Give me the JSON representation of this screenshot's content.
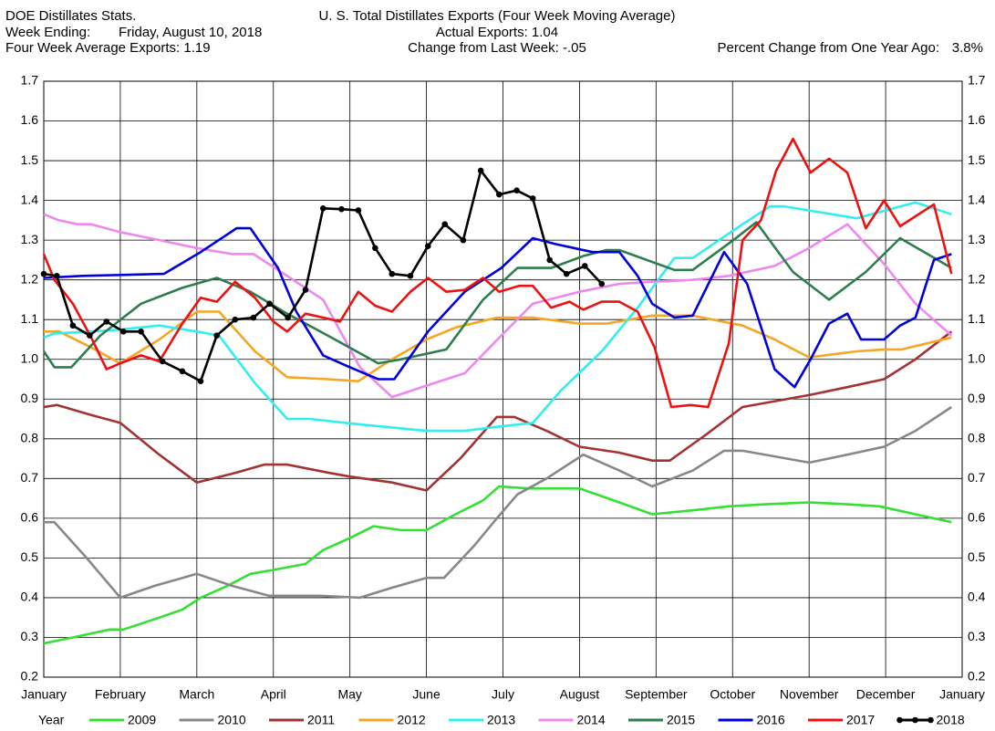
{
  "chart_data": {
    "type": "line",
    "header": {
      "source": "DOE Distillates Stats.",
      "week_label": "Week Ending:",
      "week_value": "Friday, August 10, 2018",
      "average": "Four Week Average Exports: 1.19",
      "actual": "Actual Exports: 1.04",
      "change": "Change from Last Week: -.05",
      "pct_label": "Percent Change from One Year Ago:",
      "pct_value": "3.8%"
    },
    "title": "U. S. Total Distillates Exports (Four Week Moving Average)",
    "legend_title": "Year",
    "xlim": [
      0,
      12
    ],
    "xticks": [
      {
        "value": 0,
        "label": "January"
      },
      {
        "value": 1,
        "label": "February"
      },
      {
        "value": 2,
        "label": "March"
      },
      {
        "value": 3,
        "label": "April"
      },
      {
        "value": 4,
        "label": "May"
      },
      {
        "value": 5,
        "label": "June"
      },
      {
        "value": 6,
        "label": "July"
      },
      {
        "value": 7,
        "label": "August"
      },
      {
        "value": 8,
        "label": "September"
      },
      {
        "value": 9,
        "label": "October"
      },
      {
        "value": 10,
        "label": "November"
      },
      {
        "value": 11,
        "label": "December"
      },
      {
        "value": 12,
        "label": "January"
      }
    ],
    "ylim": [
      0.2,
      1.7
    ],
    "yticks": [
      0.2,
      0.3,
      0.4,
      0.5,
      0.6,
      0.7,
      0.8,
      0.9,
      {
        "value": 1,
        "label": "1.0"
      },
      1.1,
      1.2,
      1.3,
      1.4,
      1.5,
      1.6,
      1.7
    ],
    "grid": true,
    "series": [
      {
        "name": "2009",
        "color": "#33e033",
        "x": [
          0,
          0.38,
          0.86,
          1.04,
          1.51,
          1.81,
          2.05,
          2.4,
          2.7,
          3,
          3.42,
          3.65,
          4,
          4.31,
          4.67,
          5,
          5.38,
          5.74,
          5.95,
          6.33,
          7,
          7.52,
          7.95,
          8.48,
          8.95,
          9.43,
          10,
          10.5,
          10.92,
          11.39,
          11.86
        ],
        "values": [
          0.285,
          0.3,
          0.32,
          0.32,
          0.35,
          0.37,
          0.4,
          0.43,
          0.46,
          0.47,
          0.485,
          0.52,
          0.55,
          0.58,
          0.57,
          0.57,
          0.61,
          0.645,
          0.68,
          0.675,
          0.675,
          0.64,
          0.61,
          0.62,
          0.63,
          0.635,
          0.64,
          0.635,
          0.63,
          0.61,
          0.59
        ]
      },
      {
        "name": "2010",
        "color": "#888888",
        "x": [
          0,
          0.14,
          0.56,
          1,
          1.45,
          2,
          2.46,
          2.94,
          3.6,
          4.13,
          4.55,
          5,
          5.23,
          5.62,
          5.92,
          6.19,
          6.57,
          7.05,
          7.52,
          7.95,
          8.48,
          8.89,
          9.13,
          10,
          10.5,
          10.98,
          11.39,
          11.86
        ],
        "values": [
          0.59,
          0.59,
          0.5,
          0.4,
          0.43,
          0.46,
          0.43,
          0.405,
          0.405,
          0.4,
          0.425,
          0.45,
          0.45,
          0.53,
          0.6,
          0.66,
          0.7,
          0.76,
          0.72,
          0.68,
          0.72,
          0.77,
          0.77,
          0.74,
          0.76,
          0.78,
          0.82,
          0.88
        ]
      },
      {
        "name": "2011",
        "color": "#a33333",
        "x": [
          0,
          0.17,
          0.62,
          1,
          1.51,
          2,
          2.52,
          2.88,
          3.18,
          3.71,
          4,
          4.55,
          5,
          5.44,
          5.92,
          6.15,
          6.57,
          7,
          7.52,
          7.95,
          8.18,
          8.65,
          9.13,
          10,
          10.5,
          10.98,
          11.39,
          11.86
        ],
        "values": [
          0.88,
          0.885,
          0.86,
          0.84,
          0.76,
          0.69,
          0.715,
          0.735,
          0.735,
          0.715,
          0.705,
          0.69,
          0.67,
          0.75,
          0.855,
          0.855,
          0.82,
          0.78,
          0.765,
          0.745,
          0.745,
          0.81,
          0.88,
          0.91,
          0.93,
          0.95,
          1.0,
          1.07
        ]
      },
      {
        "name": "2012",
        "color": "#f5a623",
        "x": [
          0,
          0.2,
          0.62,
          1,
          1.51,
          2,
          2.29,
          2.76,
          3.18,
          3.71,
          4.11,
          4.55,
          5,
          5.38,
          5.92,
          6.39,
          7,
          7.35,
          7.95,
          8.48,
          9.13,
          9.55,
          10,
          10.62,
          10.98,
          11.21,
          11.86
        ],
        "values": [
          1.07,
          1.07,
          1.03,
          0.99,
          1.05,
          1.12,
          1.12,
          1.02,
          0.955,
          0.95,
          0.945,
          1.0,
          1.05,
          1.08,
          1.105,
          1.105,
          1.09,
          1.09,
          1.11,
          1.11,
          1.085,
          1.05,
          1.005,
          1.02,
          1.025,
          1.025,
          1.055
        ]
      },
      {
        "name": "2013",
        "color": "#33eeee",
        "x": [
          0,
          0.14,
          0.62,
          1,
          1.51,
          2,
          2.29,
          2.76,
          3.18,
          3.48,
          4.19,
          5,
          5.5,
          5.92,
          6.39,
          6.75,
          7.29,
          7.76,
          8.24,
          8.48,
          9.13,
          9.49,
          9.67,
          10.62,
          11.1,
          11.39,
          11.86
        ],
        "values": [
          1.055,
          1.065,
          1.07,
          1.075,
          1.085,
          1.07,
          1.06,
          0.94,
          0.85,
          0.85,
          0.835,
          0.82,
          0.82,
          0.83,
          0.84,
          0.92,
          1.02,
          1.13,
          1.255,
          1.255,
          1.34,
          1.385,
          1.385,
          1.355,
          1.38,
          1.395,
          1.365
        ]
      },
      {
        "name": "2014",
        "color": "#ee88ee",
        "x": [
          0,
          0.2,
          0.44,
          0.62,
          1,
          1.51,
          2,
          2.46,
          2.74,
          3.18,
          3.65,
          4.13,
          4.55,
          5.02,
          5.5,
          5.98,
          6.39,
          7,
          7.52,
          7.95,
          8.48,
          8.95,
          9.55,
          10,
          10.5,
          10.98,
          11.39,
          11.86
        ],
        "values": [
          1.365,
          1.35,
          1.34,
          1.34,
          1.32,
          1.3,
          1.28,
          1.265,
          1.265,
          1.21,
          1.15,
          0.98,
          0.905,
          0.935,
          0.965,
          1.06,
          1.14,
          1.17,
          1.19,
          1.195,
          1.2,
          1.21,
          1.235,
          1.28,
          1.34,
          1.24,
          1.14,
          1.06
        ]
      },
      {
        "name": "2015",
        "color": "#2e7d4f",
        "x": [
          0,
          0.14,
          0.36,
          0.74,
          1.27,
          1.81,
          2.26,
          2.7,
          3.18,
          3.71,
          4.37,
          4.67,
          5.26,
          5.74,
          6.19,
          6.63,
          7.05,
          7.35,
          7.52,
          8.24,
          8.48,
          9.01,
          9.31,
          9.79,
          10.26,
          10.74,
          11.19,
          11.86
        ],
        "values": [
          1.02,
          0.98,
          0.98,
          1.06,
          1.14,
          1.18,
          1.205,
          1.17,
          1.115,
          1.06,
          0.99,
          1.0,
          1.025,
          1.15,
          1.23,
          1.23,
          1.26,
          1.275,
          1.275,
          1.225,
          1.225,
          1.3,
          1.345,
          1.22,
          1.15,
          1.22,
          1.305,
          1.23
        ]
      },
      {
        "name": "2016",
        "color": "#0000dd",
        "x": [
          0,
          0.5,
          1.57,
          2.05,
          2.52,
          2.7,
          3.06,
          3.3,
          3.65,
          4,
          4.37,
          4.58,
          5.02,
          5.5,
          5.98,
          6.39,
          6.69,
          7.17,
          7.52,
          7.76,
          7.95,
          8.24,
          8.48,
          8.89,
          9.19,
          9.55,
          9.81,
          10.02,
          10.26,
          10.5,
          10.68,
          10.98,
          11.19,
          11.39,
          11.63,
          11.86
        ],
        "values": [
          1.205,
          1.21,
          1.215,
          1.27,
          1.33,
          1.33,
          1.23,
          1.12,
          1.01,
          0.98,
          0.95,
          0.95,
          1.07,
          1.17,
          1.23,
          1.305,
          1.29,
          1.27,
          1.27,
          1.21,
          1.14,
          1.105,
          1.11,
          1.27,
          1.19,
          0.975,
          0.93,
          1.0,
          1.09,
          1.115,
          1.05,
          1.05,
          1.085,
          1.105,
          1.25,
          1.265
        ]
      },
      {
        "name": "2017",
        "color": "#ee1111",
        "x": [
          0,
          0.14,
          0.38,
          0.62,
          0.82,
          1,
          1.27,
          1.51,
          1.81,
          2.05,
          2.26,
          2.5,
          2.76,
          3,
          3.18,
          3.42,
          3.65,
          3.87,
          4.11,
          4.33,
          4.55,
          4.79,
          5.02,
          5.26,
          5.5,
          5.74,
          5.95,
          6.21,
          6.39,
          6.63,
          6.87,
          7.05,
          7.29,
          7.52,
          7.76,
          7.98,
          8.2,
          8.45,
          8.68,
          8.95,
          9.13,
          9.37,
          9.57,
          9.79,
          10.02,
          10.26,
          10.5,
          10.74,
          10.98,
          11.19,
          11.39,
          11.63,
          11.86
        ],
        "values": [
          1.265,
          1.2,
          1.14,
          1.055,
          0.975,
          0.99,
          1.01,
          0.995,
          1.09,
          1.155,
          1.145,
          1.195,
          1.155,
          1.095,
          1.07,
          1.115,
          1.105,
          1.095,
          1.17,
          1.135,
          1.12,
          1.17,
          1.205,
          1.17,
          1.175,
          1.205,
          1.17,
          1.185,
          1.185,
          1.13,
          1.145,
          1.125,
          1.145,
          1.145,
          1.12,
          1.03,
          0.88,
          0.885,
          0.88,
          1.04,
          1.3,
          1.35,
          1.475,
          1.555,
          1.47,
          1.505,
          1.47,
          1.33,
          1.4,
          1.335,
          1.36,
          1.39,
          1.215
        ]
      },
      {
        "name": "2018",
        "color": "#000000",
        "markers": true,
        "x": [
          0,
          0.17,
          0.38,
          0.6,
          0.82,
          1.04,
          1.27,
          1.55,
          1.81,
          2.05,
          2.26,
          2.5,
          2.74,
          2.95,
          3.19,
          3.42,
          3.65,
          3.89,
          4.11,
          4.33,
          4.55,
          4.79,
          5.02,
          5.24,
          5.48,
          5.71,
          5.95,
          6.18,
          6.39,
          6.61,
          6.83,
          7.07,
          7.29
        ],
        "values": [
          1.215,
          1.21,
          1.085,
          1.06,
          1.095,
          1.07,
          1.07,
          0.995,
          0.97,
          0.945,
          1.06,
          1.1,
          1.105,
          1.14,
          1.105,
          1.175,
          1.38,
          1.378,
          1.375,
          1.28,
          1.215,
          1.21,
          1.285,
          1.34,
          1.3,
          1.475,
          1.415,
          1.425,
          1.405,
          1.25,
          1.215,
          1.235,
          1.19
        ]
      }
    ]
  }
}
